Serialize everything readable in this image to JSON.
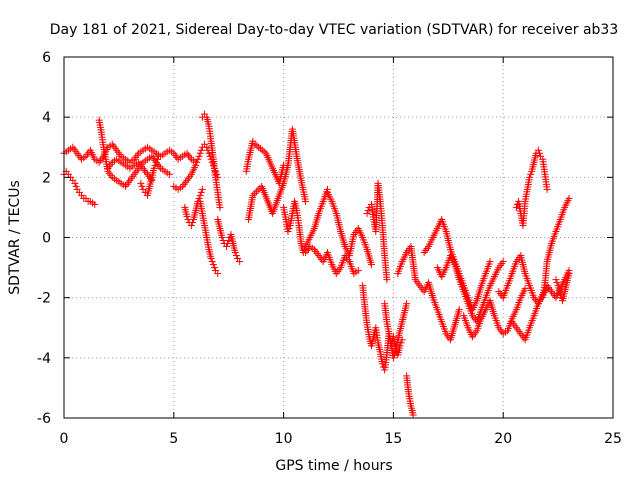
{
  "chart_data": {
    "type": "scatter",
    "title": "Day 181 of 2021, Sidereal Day-to-day VTEC variation (SDTVAR) for receiver ab33",
    "xlabel": "GPS time / hours",
    "ylabel": "SDTVAR / TECUs",
    "xlim": [
      0,
      25
    ],
    "ylim": [
      -6,
      6
    ],
    "xticks": [
      "0",
      "5",
      "10",
      "15",
      "20",
      "25"
    ],
    "yticks": [
      "-6",
      "-4",
      "-2",
      "0",
      "2",
      "4",
      "6"
    ],
    "grid": true,
    "marker": "+",
    "color": "#ff0000",
    "series": [
      {
        "name": "SDTVAR",
        "segments": [
          {
            "x": [
              0.0,
              0.1,
              0.2,
              0.3,
              0.4,
              0.5,
              0.6,
              0.7,
              0.8,
              0.9,
              1.0,
              1.1,
              1.2,
              1.3,
              1.4
            ],
            "y": [
              2.1,
              2.2,
              2.1,
              2.0,
              1.9,
              1.8,
              1.6,
              1.5,
              1.4,
              1.3,
              1.3,
              1.2,
              1.2,
              1.15,
              1.1
            ]
          },
          {
            "x": [
              0.0,
              0.2,
              0.4,
              0.6,
              0.8,
              1.0,
              1.2,
              1.4,
              1.6,
              1.8,
              2.0,
              2.2,
              2.4,
              2.6,
              2.8,
              3.0,
              3.2,
              3.4,
              3.6,
              3.8,
              4.0,
              4.2,
              4.4,
              4.6,
              4.8,
              5.0,
              5.2,
              5.4,
              5.6,
              5.8,
              6.0
            ],
            "y": [
              2.8,
              2.9,
              3.0,
              2.8,
              2.6,
              2.7,
              2.9,
              2.6,
              2.5,
              2.7,
              3.0,
              3.1,
              2.9,
              2.7,
              2.6,
              2.5,
              2.6,
              2.8,
              2.9,
              3.0,
              2.9,
              2.8,
              2.7,
              2.8,
              2.9,
              2.8,
              2.6,
              2.7,
              2.8,
              2.6,
              2.5
            ]
          },
          {
            "x": [
              1.6,
              1.7,
              1.8,
              1.9,
              2.0,
              2.2,
              2.4,
              2.6,
              2.8,
              3.0,
              3.2,
              3.4,
              3.6,
              3.8,
              4.0,
              4.2,
              4.4,
              4.6,
              4.8
            ],
            "y": [
              3.9,
              3.5,
              3.0,
              2.6,
              2.2,
              2.0,
              1.9,
              1.8,
              1.7,
              1.9,
              2.1,
              2.3,
              2.5,
              2.6,
              2.7,
              2.5,
              2.3,
              2.2,
              2.1
            ]
          },
          {
            "x": [
              2.0,
              2.2,
              2.4,
              2.6,
              2.8,
              3.0,
              3.2,
              3.4,
              3.6,
              3.8,
              4.0
            ],
            "y": [
              2.3,
              2.5,
              2.6,
              2.5,
              2.4,
              2.3,
              2.4,
              2.5,
              2.3,
              2.1,
              1.9
            ]
          },
          {
            "x": [
              3.5,
              3.6,
              3.7,
              3.8,
              3.9,
              4.0,
              4.1,
              4.2,
              4.3
            ],
            "y": [
              1.8,
              1.6,
              1.5,
              1.4,
              1.7,
              2.0,
              2.3,
              2.5,
              2.7
            ]
          },
          {
            "x": [
              5.0,
              5.2,
              5.4,
              5.6,
              5.8,
              6.0,
              6.1,
              6.2,
              6.3,
              6.4,
              6.5,
              6.6,
              6.7,
              6.8,
              6.9,
              7.0
            ],
            "y": [
              1.7,
              1.6,
              1.7,
              1.9,
              2.1,
              2.4,
              2.6,
              2.8,
              3.0,
              3.1,
              3.0,
              2.8,
              2.6,
              2.4,
              2.2,
              2.0
            ]
          },
          {
            "x": [
              5.5,
              5.6,
              5.7,
              5.8,
              5.9,
              6.0,
              6.1,
              6.2,
              6.3
            ],
            "y": [
              1.0,
              0.7,
              0.5,
              0.4,
              0.6,
              0.9,
              1.2,
              1.4,
              1.6
            ]
          },
          {
            "x": [
              6.3,
              6.4,
              6.5,
              6.6,
              6.7,
              6.8,
              6.9,
              7.0,
              7.1
            ],
            "y": [
              4.0,
              4.1,
              4.0,
              3.7,
              3.2,
              2.6,
              2.0,
              1.5,
              1.0
            ]
          },
          {
            "x": [
              6.2,
              6.3,
              6.4,
              6.5,
              6.6,
              6.7,
              6.8,
              6.9,
              7.0
            ],
            "y": [
              1.2,
              0.8,
              0.4,
              0.0,
              -0.4,
              -0.7,
              -0.9,
              -1.1,
              -1.2
            ]
          },
          {
            "x": [
              7.0,
              7.1,
              7.2,
              7.3,
              7.4,
              7.5,
              7.6,
              7.7,
              7.8,
              7.9,
              8.0
            ],
            "y": [
              0.6,
              0.3,
              0.0,
              -0.2,
              -0.3,
              -0.1,
              0.1,
              -0.2,
              -0.5,
              -0.7,
              -0.8
            ]
          },
          {
            "x": [
              8.3,
              8.4,
              8.5,
              8.6,
              8.7,
              9.2,
              9.8,
              10.0
            ],
            "y": [
              2.2,
              2.6,
              2.9,
              3.2,
              3.1,
              2.8,
              1.8,
              2.4
            ]
          },
          {
            "x": [
              8.4,
              8.6,
              9.0,
              9.5,
              10.0,
              10.2,
              10.4,
              10.6,
              10.8,
              11.0
            ],
            "y": [
              0.6,
              1.4,
              1.7,
              0.8,
              1.8,
              2.4,
              3.6,
              2.7,
              1.9,
              1.2
            ]
          },
          {
            "x": [
              10.0,
              10.1,
              10.2,
              10.3,
              10.4,
              10.5,
              10.6,
              10.7,
              10.8,
              10.9,
              11.0,
              11.2,
              11.4,
              11.6,
              11.8,
              12.0
            ],
            "y": [
              1.0,
              0.6,
              0.2,
              0.4,
              0.8,
              1.2,
              0.9,
              0.4,
              -0.2,
              -0.5,
              -0.3,
              0.0,
              0.3,
              0.8,
              1.2,
              1.6
            ]
          },
          {
            "x": [
              11.0,
              11.2,
              11.4,
              11.6,
              11.8,
              12.0,
              12.2,
              12.4,
              12.6,
              12.8,
              13.0,
              13.2,
              13.4
            ],
            "y": [
              -0.5,
              -0.3,
              -0.4,
              -0.6,
              -0.8,
              -0.5,
              -0.9,
              -1.2,
              -1.0,
              -0.6,
              -0.8,
              -1.2,
              -1.1
            ]
          },
          {
            "x": [
              12.0,
              12.2,
              12.4,
              12.6,
              12.8,
              13.0,
              13.2,
              13.4,
              13.6,
              13.8,
              14.0
            ],
            "y": [
              1.5,
              1.2,
              0.8,
              0.2,
              -0.3,
              -0.6,
              0.1,
              0.3,
              0.0,
              -0.4,
              -0.9
            ]
          },
          {
            "x": [
              13.6,
              13.7,
              13.8,
              13.9,
              14.0,
              14.1,
              14.2,
              14.3,
              14.4,
              14.5,
              14.6,
              14.7,
              14.8,
              14.9,
              15.0,
              15.2,
              15.4,
              15.6
            ],
            "y": [
              -1.6,
              -2.3,
              -2.9,
              -3.3,
              -3.6,
              -3.3,
              -3.0,
              -3.5,
              -3.8,
              -4.2,
              -4.4,
              -3.9,
              -3.2,
              -3.6,
              -4.0,
              -3.4,
              -2.8,
              -2.2
            ]
          },
          {
            "x": [
              13.8,
              13.9,
              14.0,
              14.1,
              14.2,
              14.3,
              14.4,
              14.5,
              14.6,
              14.7
            ],
            "y": [
              0.8,
              1.0,
              1.1,
              0.6,
              0.2,
              1.8,
              1.2,
              0.4,
              -0.6,
              -1.4
            ]
          },
          {
            "x": [
              14.6,
              14.7,
              14.8,
              14.9,
              15.0,
              15.1,
              15.2,
              15.3,
              15.4
            ],
            "y": [
              -2.2,
              -2.8,
              -3.2,
              -3.6,
              -3.3,
              -3.7,
              -3.9,
              -3.6,
              -3.4
            ]
          },
          {
            "x": [
              15.2,
              15.4,
              15.6,
              15.8,
              16.0,
              16.2,
              16.4,
              16.6,
              16.8,
              17.0,
              17.2,
              17.4,
              17.6,
              17.8,
              18.0
            ],
            "y": [
              -1.2,
              -0.8,
              -0.5,
              -0.3,
              -1.4,
              -1.6,
              -1.8,
              -1.5,
              -2.0,
              -2.4,
              -2.8,
              -3.2,
              -3.4,
              -2.9,
              -2.4
            ]
          },
          {
            "x": [
              15.6,
              15.7,
              15.8,
              15.9
            ],
            "y": [
              -4.6,
              -5.2,
              -5.6,
              -5.9
            ]
          },
          {
            "x": [
              16.4,
              16.6,
              16.8,
              17.0,
              17.2,
              17.4,
              17.6,
              17.8,
              18.0,
              18.2,
              18.4,
              18.6,
              18.8,
              19.0,
              19.2,
              19.4
            ],
            "y": [
              -0.5,
              -0.3,
              0.0,
              0.3,
              0.6,
              0.2,
              -0.4,
              -0.8,
              -1.2,
              -1.6,
              -2.0,
              -2.4,
              -2.1,
              -1.6,
              -1.2,
              -0.8
            ]
          },
          {
            "x": [
              17.0,
              17.2,
              17.4,
              17.6,
              17.8,
              18.0,
              18.2,
              18.4,
              18.6,
              18.8,
              19.0,
              19.2,
              19.4,
              19.6,
              19.8,
              20.0
            ],
            "y": [
              -1.0,
              -1.3,
              -1.0,
              -0.6,
              -0.9,
              -1.4,
              -1.8,
              -2.2,
              -2.6,
              -2.8,
              -2.4,
              -2.0,
              -1.6,
              -1.3,
              -1.0,
              -0.8
            ]
          },
          {
            "x": [
              18.2,
              18.4,
              18.6,
              18.8,
              19.0,
              19.2,
              19.4,
              19.6,
              19.8,
              20.0,
              20.2,
              20.4,
              20.6,
              20.8,
              21.0
            ],
            "y": [
              -2.6,
              -3.0,
              -3.3,
              -3.1,
              -2.7,
              -2.4,
              -2.1,
              -2.6,
              -3.0,
              -3.2,
              -3.1,
              -2.7,
              -2.4,
              -2.0,
              -1.7
            ]
          },
          {
            "x": [
              19.8,
              20.0,
              20.2,
              20.4,
              20.6,
              20.8,
              21.0,
              21.2,
              21.4,
              21.6,
              21.8,
              22.0,
              22.2,
              22.4,
              22.6,
              22.8,
              23.0
            ],
            "y": [
              -1.8,
              -2.0,
              -1.6,
              -1.2,
              -0.8,
              -0.6,
              -1.2,
              -1.6,
              -2.0,
              -2.2,
              -1.9,
              -1.6,
              -1.8,
              -2.0,
              -1.7,
              -1.4,
              -1.1
            ]
          },
          {
            "x": [
              20.4,
              20.6,
              20.8,
              21.0,
              21.2,
              21.4,
              21.6,
              21.8,
              22.0
            ],
            "y": [
              -2.8,
              -3.0,
              -3.2,
              -3.4,
              -3.0,
              -2.6,
              -2.2,
              -1.9,
              -1.7
            ]
          },
          {
            "x": [
              20.6,
              20.7,
              20.8,
              20.9,
              21.0,
              21.1,
              21.2,
              21.3,
              21.4,
              21.5,
              21.6,
              21.7,
              21.8,
              21.9,
              22.0
            ],
            "y": [
              1.0,
              1.2,
              0.8,
              0.4,
              1.2,
              1.6,
              2.0,
              2.2,
              2.5,
              2.8,
              2.9,
              2.7,
              2.6,
              2.1,
              1.6
            ]
          },
          {
            "x": [
              21.8,
              21.9,
              22.0,
              22.2,
              22.4,
              22.6,
              22.8,
              23.0
            ],
            "y": [
              -2.0,
              -1.5,
              -0.8,
              -0.2,
              0.2,
              0.6,
              1.0,
              1.3
            ]
          },
          {
            "x": [
              22.4,
              22.5,
              22.6,
              22.7,
              22.8,
              22.9,
              23.0
            ],
            "y": [
              -1.4,
              -1.6,
              -1.9,
              -2.1,
              -1.8,
              -1.5,
              -1.2
            ]
          }
        ]
      }
    ]
  }
}
